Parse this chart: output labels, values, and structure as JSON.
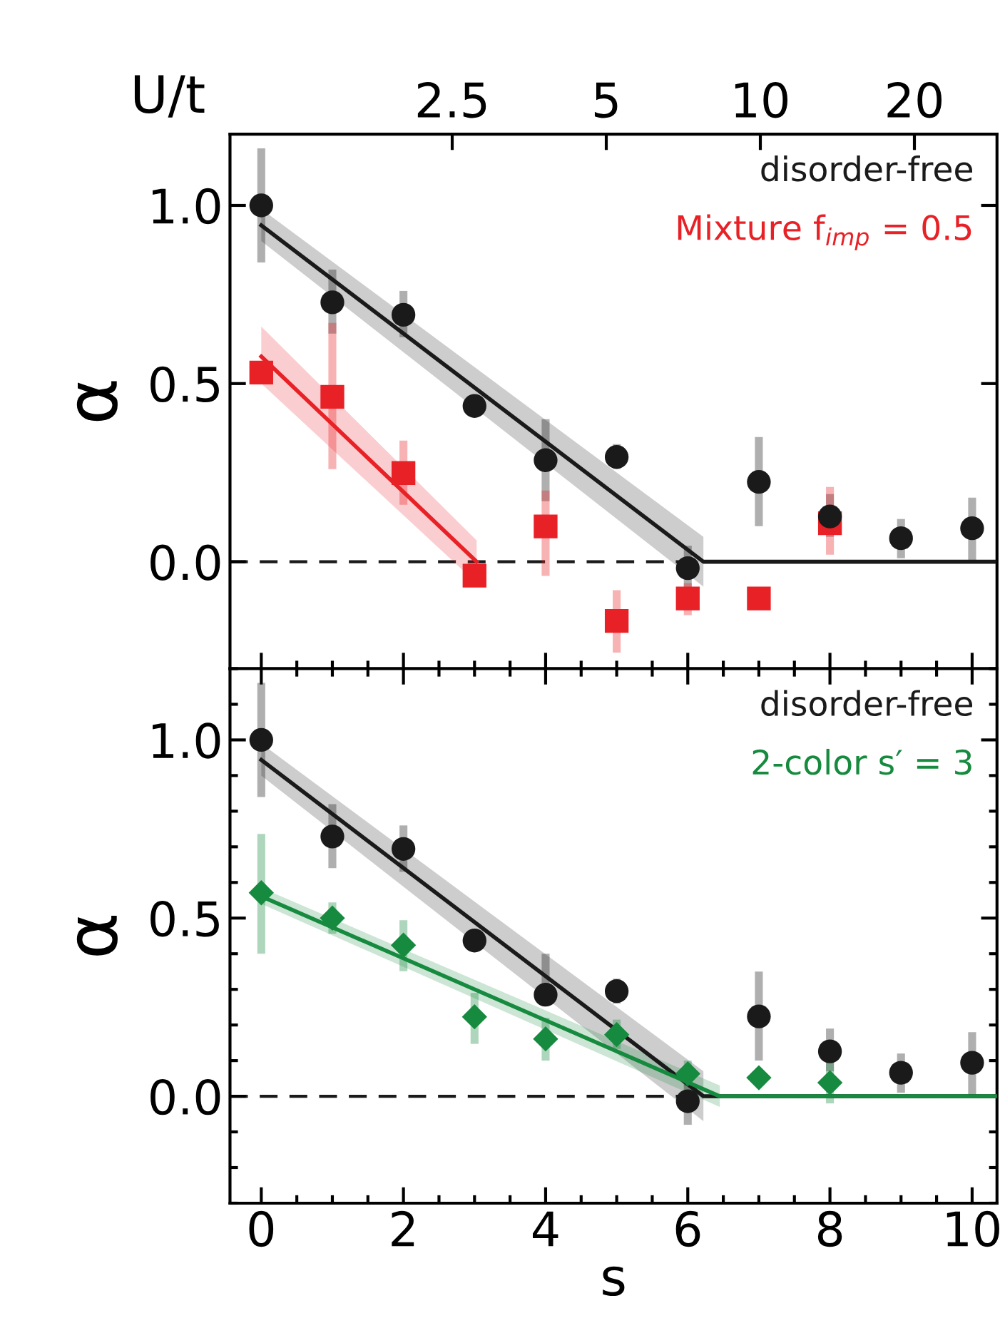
{
  "chart_data": [
    {
      "type": "scatter",
      "x2label": "U/t",
      "ylabel": "α",
      "xlim": [
        -0.44,
        10.35
      ],
      "x2lim": [
        0.92,
        29
      ],
      "log": "x2",
      "x2ticks": [
        2.5,
        5,
        10,
        20
      ],
      "xticks": [
        {
          "value": 0,
          "label": null
        },
        {
          "value": 2,
          "label": null
        },
        {
          "value": 4,
          "label": null
        },
        {
          "value": 6,
          "label": null
        },
        {
          "value": 8,
          "label": null
        },
        {
          "value": 10,
          "label": null
        }
      ],
      "ylim": [
        -0.3,
        1.2
      ],
      "yticks": [
        {
          "value": 0,
          "label": "0.0"
        },
        {
          "value": 0.5,
          "label": "0.5"
        },
        {
          "value": 1,
          "label": "1.0"
        }
      ],
      "tick_labels": "y",
      "legend": "top right",
      "grid": false,
      "ref_lines": [
        {
          "axis": "y",
          "value": 0,
          "color": "#1a1a1a",
          "line_style": "dashed"
        }
      ],
      "series": [
        {
          "name": "disorder-free",
          "color": "#1a1a1a",
          "marker": "circle",
          "x": [
            0,
            1,
            2,
            3,
            4,
            5,
            6,
            7,
            8,
            9,
            10
          ],
          "values": [
            1.0,
            0.728,
            0.693,
            0.437,
            0.285,
            0.294,
            -0.018,
            0.224,
            0.127,
            0.066,
            0.094
          ],
          "errors": [
            [
              0.84,
              1.16
            ],
            [
              0.64,
              0.82
            ],
            [
              0.63,
              0.76
            ],
            null,
            [
              0.17,
              0.4
            ],
            [
              0.26,
              0.33
            ],
            [
              -0.08,
              0.045
            ],
            [
              0.1,
              0.35
            ],
            [
              0.07,
              0.19
            ],
            [
              0.01,
              0.12
            ],
            [
              0.0,
              0.18
            ]
          ]
        },
        {
          "name": "Mixture f$_{imp}$ = 0.5",
          "color": "#e82127",
          "marker": "square",
          "x": [
            0,
            1,
            2,
            3,
            4,
            5,
            6,
            7,
            8
          ],
          "values": [
            0.531,
            0.463,
            0.249,
            -0.039,
            0.099,
            -0.166,
            -0.103,
            -0.103,
            0.108
          ],
          "errors": [
            null,
            [
              0.26,
              0.67
            ],
            [
              0.16,
              0.34
            ],
            null,
            [
              -0.04,
              0.2
            ],
            [
              -0.255,
              -0.08
            ],
            [
              -0.15,
              -0.06
            ],
            null,
            [
              0.02,
              0.21
            ]
          ]
        },
        {
          "type": "line",
          "color": "#1a1a1a",
          "x": [
            0,
            6.22,
            10.35
          ],
          "values": [
            0.944,
            0,
            0
          ],
          "lower": [
            0.9,
            -0.07,
            null
          ],
          "upper": [
            0.99,
            0.07,
            null
          ]
        },
        {
          "type": "line",
          "color": "#e82127",
          "x": [
            0,
            3.03
          ],
          "values": [
            0.576,
            0
          ],
          "lower": [
            0.5,
            -0.06
          ],
          "upper": [
            0.66,
            0.06
          ]
        }
      ]
    },
    {
      "type": "scatter",
      "xlabel": "s",
      "ylabel": "α",
      "xlim": [
        -0.44,
        10.35
      ],
      "xticks": [
        0,
        2,
        4,
        6,
        8,
        10
      ],
      "ylim": [
        -0.3,
        1.2
      ],
      "yticks": [
        {
          "value": 0,
          "label": "0.0"
        },
        {
          "value": 0.5,
          "label": "0.5"
        },
        {
          "value": 1,
          "label": "1.0"
        }
      ],
      "legend": "top right",
      "grid": false,
      "ref_lines": [
        {
          "axis": "y",
          "value": 0,
          "color": "#1a1a1a",
          "line_style": "dashed"
        }
      ],
      "series": [
        {
          "name": "disorder-free",
          "color": "#1a1a1a",
          "marker": "circle",
          "x": [
            0,
            1,
            2,
            3,
            4,
            5,
            6,
            7,
            8,
            9,
            10
          ],
          "values": [
            1.0,
            0.729,
            0.694,
            0.437,
            0.285,
            0.295,
            -0.014,
            0.224,
            0.126,
            0.066,
            0.094
          ],
          "errors": [
            [
              0.84,
              1.16
            ],
            [
              0.64,
              0.82
            ],
            [
              0.63,
              0.76
            ],
            null,
            [
              0.285,
              0.4
            ],
            [
              0.26,
              0.33
            ],
            [
              -0.08,
              0.045
            ],
            [
              0.1,
              0.35
            ],
            [
              0.07,
              0.19
            ],
            [
              0.01,
              0.12
            ],
            [
              0.0,
              0.18
            ]
          ]
        },
        {
          "name": "2-color s′ = 3",
          "color": "#168a3e",
          "marker": "diamond",
          "x": [
            0,
            1,
            2,
            3,
            4,
            5,
            6,
            7,
            8
          ],
          "values": [
            0.571,
            0.5,
            0.424,
            0.223,
            0.161,
            0.173,
            0.063,
            0.052,
            0.038
          ],
          "errors": [
            [
              0.4,
              0.736
            ],
            [
              0.456,
              0.544
            ],
            [
              0.351,
              0.494
            ],
            [
              0.147,
              0.29
            ],
            [
              0.1,
              0.22
            ],
            [
              0.133,
              0.215
            ],
            [
              0.03,
              0.1
            ],
            null,
            [
              -0.02,
              0.1
            ]
          ]
        },
        {
          "type": "line",
          "color": "#1a1a1a",
          "x": [
            0,
            6.22,
            10.35
          ],
          "values": [
            0.944,
            0,
            0
          ],
          "lower": [
            0.9,
            -0.07,
            null
          ],
          "upper": [
            0.99,
            0.07,
            null
          ]
        },
        {
          "type": "line",
          "color": "#168a3e",
          "x": [
            0,
            6.45,
            10.35
          ],
          "values": [
            0.561,
            0,
            0
          ],
          "lower": [
            0.54,
            -0.03,
            null
          ],
          "upper": [
            0.585,
            0.03,
            null
          ]
        }
      ]
    }
  ]
}
